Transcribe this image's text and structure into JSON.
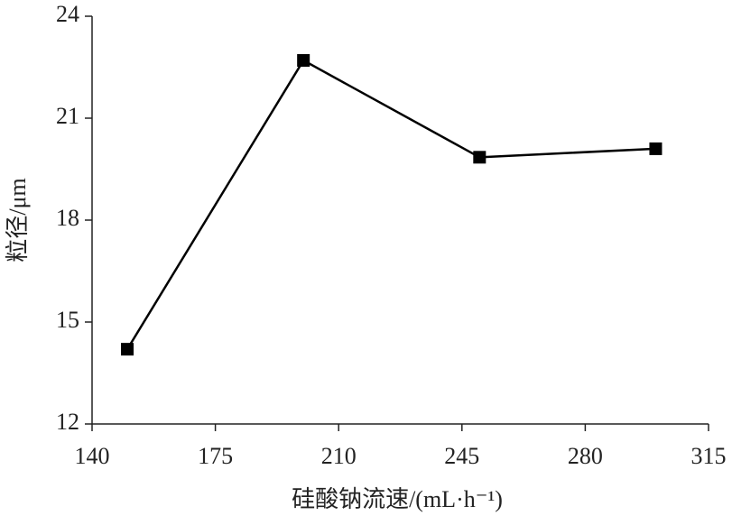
{
  "chart_data": {
    "type": "line",
    "x_label": "硅酸钠流速/(mL·h⁻¹)",
    "y_label": "粒径/μm",
    "x": [
      150,
      200,
      250,
      300
    ],
    "series": [
      {
        "color": "#000000",
        "values": [
          14.2,
          22.7,
          19.85,
          20.1
        ]
      }
    ],
    "xlim": [
      140,
      315
    ],
    "xticks": [
      140,
      175,
      210,
      245,
      280,
      315
    ],
    "ylim": [
      12,
      24
    ],
    "yticks": [
      12,
      15,
      18,
      21,
      24
    ],
    "grid": false
  }
}
